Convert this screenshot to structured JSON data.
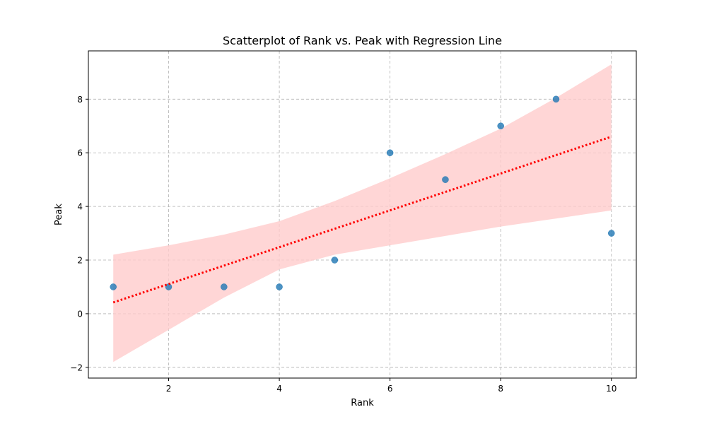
{
  "chart_data": {
    "type": "scatter",
    "title": "Scatterplot of Rank vs. Peak with Regression Line",
    "xlabel": "Rank",
    "ylabel": "Peak",
    "xlim": [
      0.55,
      10.45
    ],
    "ylim": [
      -2.4,
      9.8
    ],
    "xticks": [
      2,
      4,
      6,
      8,
      10
    ],
    "yticks": [
      -2,
      0,
      2,
      4,
      6,
      8
    ],
    "xtick_labels": [
      "2",
      "4",
      "6",
      "8",
      "10"
    ],
    "ytick_labels": [
      "−2",
      "0",
      "2",
      "4",
      "6",
      "8"
    ],
    "grid": true,
    "series": [
      {
        "x": [
          1,
          2,
          3,
          4,
          5,
          6,
          7,
          8,
          9,
          10
        ],
        "y": [
          1,
          1,
          1,
          1,
          2,
          6,
          5,
          7,
          8,
          3
        ],
        "color": "#1f77b4"
      }
    ],
    "regression": {
      "x": [
        1,
        10
      ],
      "y": [
        0.42,
        6.6
      ],
      "color": "#ff0000",
      "style": "dotted"
    },
    "confidence_band": {
      "color": "#ffcccc",
      "x": [
        1,
        2,
        3,
        4,
        5,
        6,
        7,
        8,
        9,
        10
      ],
      "upper": [
        2.2,
        2.55,
        2.95,
        3.45,
        4.2,
        5.05,
        5.95,
        6.9,
        8.05,
        9.3
      ],
      "lower": [
        -1.8,
        -0.6,
        0.6,
        1.65,
        2.2,
        2.55,
        2.9,
        3.25,
        3.55,
        3.85
      ]
    }
  }
}
